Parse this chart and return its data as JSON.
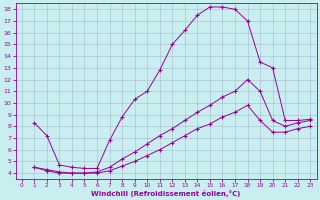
{
  "xlabel": "Windchill (Refroidissement éolien,°C)",
  "bg_color": "#c8eef0",
  "line_color": "#990099",
  "grid_color": "#9999bb",
  "xlim": [
    -0.5,
    23.5
  ],
  "ylim": [
    3.5,
    18.5
  ],
  "xticks": [
    0,
    1,
    2,
    3,
    4,
    5,
    6,
    7,
    8,
    9,
    10,
    11,
    12,
    13,
    14,
    15,
    16,
    17,
    18,
    19,
    20,
    21,
    22,
    23
  ],
  "yticks": [
    4,
    5,
    6,
    7,
    8,
    9,
    10,
    11,
    12,
    13,
    14,
    15,
    16,
    17,
    18
  ],
  "line1_x": [
    1,
    2,
    3,
    4,
    5,
    6,
    7,
    8,
    9,
    10,
    11,
    12,
    13,
    14,
    15,
    16,
    17,
    18,
    19,
    20,
    21,
    22,
    23
  ],
  "line1_y": [
    8.3,
    7.2,
    4.7,
    4.5,
    4.4,
    4.4,
    6.8,
    8.8,
    10.3,
    11.0,
    12.8,
    15.0,
    16.2,
    17.5,
    18.2,
    18.2,
    18.0,
    17.0,
    13.5,
    13.0,
    8.5,
    8.5,
    8.6
  ],
  "line2_x": [
    1,
    2,
    3,
    4,
    5,
    6,
    7,
    8,
    9,
    10,
    11,
    12,
    13,
    14,
    15,
    16,
    17,
    18,
    19,
    20,
    21,
    22,
    23
  ],
  "line2_y": [
    4.5,
    4.3,
    4.1,
    4.0,
    4.0,
    4.1,
    4.5,
    5.2,
    5.8,
    6.5,
    7.2,
    7.8,
    8.5,
    9.2,
    9.8,
    10.5,
    11.0,
    12.0,
    11.0,
    8.5,
    8.0,
    8.3,
    8.5
  ],
  "line3_x": [
    1,
    2,
    3,
    4,
    5,
    6,
    7,
    8,
    9,
    10,
    11,
    12,
    13,
    14,
    15,
    16,
    17,
    18,
    19,
    20,
    21,
    22,
    23
  ],
  "line3_y": [
    4.5,
    4.2,
    4.0,
    4.0,
    4.0,
    4.0,
    4.2,
    4.6,
    5.0,
    5.5,
    6.0,
    6.6,
    7.2,
    7.8,
    8.2,
    8.8,
    9.2,
    9.8,
    8.5,
    7.5,
    7.5,
    7.8,
    8.0
  ]
}
